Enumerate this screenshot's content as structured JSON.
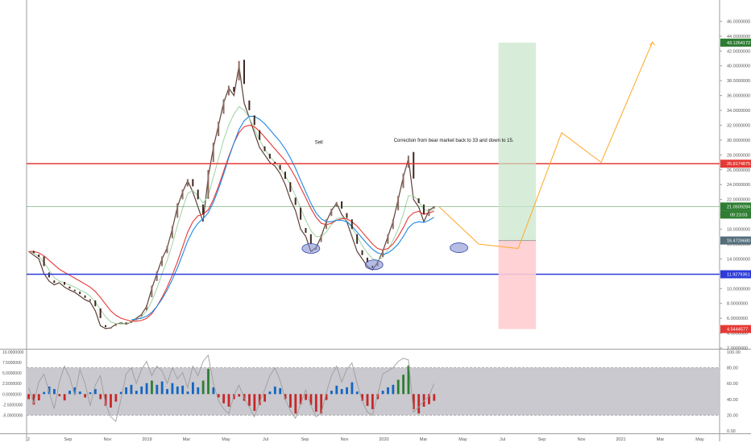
{
  "chart_data": {
    "type": "line",
    "main": {
      "ylim": [
        2,
        48
      ],
      "y_ticks": [
        "46.0000000",
        "44.0000000",
        "42.0000000",
        "40.0000000",
        "38.0000000",
        "36.0000000",
        "34.0000000",
        "32.0000000",
        "30.0000000",
        "28.0000000",
        "26.0000000",
        "24.0000000",
        "22.0000000",
        "20.0000000",
        "18.0000000",
        "16.0000000",
        "14.0000000",
        "12.0000000",
        "10.0000000",
        "8.0000000",
        "6.0000000",
        "4.0000000",
        "2.0000000"
      ],
      "series": [
        {
          "values": [
            15,
            14.5,
            14,
            12,
            11,
            10.5,
            10.8,
            10.2,
            9.8,
            9.5,
            9,
            8.5,
            8.2,
            7,
            5,
            4.6,
            4.7,
            5.2,
            5.4,
            5.2,
            5.5,
            6,
            6.5,
            7.6,
            10,
            12,
            14,
            15.5,
            18,
            21,
            23,
            24.5,
            23,
            21,
            19,
            25,
            29,
            32,
            35,
            37,
            36,
            40,
            35,
            33,
            31,
            29,
            28,
            27,
            26.5,
            25.5,
            24,
            22,
            20.5,
            18,
            17,
            15,
            15.5,
            17,
            19,
            20.5,
            21.5,
            20,
            19,
            17,
            15,
            14,
            13,
            12.5,
            13.5,
            15,
            17,
            19,
            22,
            25,
            27.5,
            22,
            21,
            19,
            20.5,
            21
          ]
        },
        {
          "values": [
            15,
            14.8,
            14.3,
            13.5,
            12.5,
            11.5,
            11,
            10.8,
            10.5,
            10.2,
            9.8,
            9.5,
            9,
            8.2,
            7.2,
            6.2,
            5.5,
            5.3,
            5.2,
            5.3,
            5.5,
            5.8,
            6.2,
            7,
            8.3,
            10,
            12,
            13.8,
            16,
            18.5,
            20.8,
            22.8,
            23.2,
            22.5,
            21.5,
            22.5,
            25,
            27.5,
            30,
            32,
            33.5,
            34.5,
            34,
            33,
            31.5,
            30,
            28.8,
            27.8,
            27,
            26.2,
            25.2,
            24,
            22.5,
            20.8,
            19.2,
            17.8,
            17,
            17,
            17.6,
            18.6,
            19.4,
            19.6,
            19.2,
            18.2,
            17,
            15.8,
            14.8,
            14,
            13.8,
            14.2,
            15.2,
            16.5,
            18,
            20,
            22.5,
            22.5,
            21.8,
            20.6,
            20.5,
            20.6
          ]
        },
        {
          "values": [
            15,
            15,
            14.8,
            14.4,
            13.8,
            13.2,
            12.6,
            12.2,
            11.8,
            11.4,
            11,
            10.6,
            10.2,
            9.6,
            8.8,
            7.9,
            7,
            6.4,
            6,
            5.8,
            5.6,
            5.6,
            5.7,
            6,
            6.6,
            7.6,
            8.8,
            10.2,
            11.8,
            13.6,
            15.6,
            17.6,
            19,
            19.8,
            20,
            20.6,
            22,
            23.8,
            25.8,
            27.8,
            29.6,
            31,
            31.8,
            32,
            31.8,
            31.2,
            30.4,
            29.6,
            28.8,
            28,
            27.2,
            26.2,
            25,
            23.6,
            22.2,
            20.8,
            19.6,
            18.8,
            18.6,
            18.8,
            19.2,
            19.4,
            19.4,
            19,
            18.4,
            17.6,
            16.8,
            16,
            15.4,
            15.2,
            15.4,
            16,
            17,
            18.2,
            19.6,
            20.2,
            20.4,
            20,
            20.2,
            20.4
          ]
        },
        {
          "values": [
            null,
            null,
            null,
            null,
            null,
            null,
            null,
            null,
            null,
            null,
            null,
            null,
            null,
            null,
            null,
            null,
            null,
            null,
            null,
            null,
            5.8,
            5.9,
            6,
            6.3,
            6.8,
            7.6,
            8.6,
            9.8,
            11.2,
            12.8,
            14.6,
            16.4,
            17.8,
            18.8,
            19.4,
            20.2,
            21.6,
            23.4,
            25.4,
            27.6,
            29.6,
            31.4,
            32.6,
            33.2,
            33.2,
            32.8,
            32.2,
            31.4,
            30.6,
            29.8,
            28.8,
            27.6,
            26.2,
            24.6,
            23,
            21.5,
            20.2,
            19.4,
            19,
            19,
            19.2,
            19.2,
            19,
            18.4,
            17.6,
            16.8,
            16,
            15.3,
            14.8,
            14.6,
            14.8,
            15.3,
            16,
            17,
            18.2,
            18.8,
            19,
            18.9,
            19.2,
            19.6
          ]
        }
      ],
      "projection_path": [
        [
          20.8,
          21
        ],
        [
          22.8,
          16
        ],
        [
          24.8,
          15.4
        ],
        [
          27,
          31
        ],
        [
          29,
          27
        ],
        [
          31.6,
          43.2
        ]
      ],
      "projection_end_label": "43.1264172",
      "hlines": [
        {
          "value": 26.8174875,
          "label": "26.8174875",
          "color": "#e53935"
        },
        {
          "value": 11.9279361,
          "label": "11.9279361",
          "color": "#2e3bd9"
        },
        {
          "value": 21.0509284,
          "label": "21.0509284",
          "color": "#2e7d32"
        }
      ],
      "countdown_label": "09:23:03",
      "position_box": {
        "entry": 16.472668,
        "target": 43.1264172,
        "stop": 4.5444577,
        "entry_label": "16.4726680",
        "target_label": "43.1264172",
        "stop_label": "4.5444577"
      },
      "ellipses": [
        [
          14.3,
          15.4
        ],
        [
          17.5,
          13.2
        ],
        [
          21.8,
          15.5
        ]
      ],
      "annotations": [
        {
          "text": "Sell",
          "x": 14.5,
          "y": 29.5
        },
        {
          "text": "Correction from bear market back to 33 and down to 15.",
          "x": 18.5,
          "y": 29.8
        }
      ]
    },
    "oscillator": {
      "left_ticks": [
        "10.0000000",
        "7.5000000",
        "5.0000000",
        "2.5000000",
        "0.0000000",
        "-2.5000000",
        "-5.0000000"
      ],
      "right_ticks": [
        "100.00",
        "80.00",
        "60.00",
        "40.00",
        "20.00",
        "0.00"
      ],
      "band": [
        20,
        80
      ],
      "histogram": [
        -1.2,
        -2.5,
        -1.5,
        0.5,
        1.8,
        1.2,
        -0.5,
        -1.5,
        0.8,
        1.6,
        0.6,
        -0.8,
        0.4,
        1.2,
        -1.2,
        -2.8,
        -3.2,
        -1.8,
        0.5,
        1.6,
        2.2,
        0.8,
        1.8,
        2.6,
        3.2,
        2.2,
        3.0,
        1.2,
        2.6,
        1.8,
        2.0,
        0.6,
        2.8,
        1.6,
        3.2,
        6.0,
        1.6,
        -0.8,
        -2.2,
        -3.0,
        -1.2,
        -0.6,
        -1.6,
        -2.8,
        -4.0,
        -2.6,
        -1.8,
        0.6,
        1.8,
        1.4,
        -1.2,
        -3.2,
        -4.6,
        -2.4,
        -1.4,
        -2.6,
        -4.2,
        -4.6,
        -1.4,
        0.8,
        2.0,
        1.2,
        1.6,
        2.8,
        0.6,
        -1.6,
        -2.8,
        -3.6,
        -1.2,
        0.8,
        1.6,
        2.2,
        3.4,
        4.6,
        6.8,
        -3.6,
        -4.6,
        -3.0,
        -2.4,
        -1.6
      ],
      "rsi": [
        55,
        35,
        62,
        72,
        50,
        28,
        62,
        82,
        68,
        45,
        78,
        60,
        32,
        58,
        70,
        34,
        18,
        12,
        40,
        72,
        80,
        60,
        78,
        88,
        70,
        82,
        76,
        60,
        80,
        66,
        74,
        55,
        82,
        70,
        88,
        96,
        60,
        38,
        28,
        22,
        45,
        58,
        42,
        30,
        18,
        36,
        52,
        70,
        80,
        64,
        40,
        26,
        16,
        34,
        52,
        32,
        18,
        22,
        48,
        70,
        82,
        62,
        78,
        86,
        60,
        38,
        24,
        20,
        46,
        72,
        76,
        80,
        88,
        92,
        90,
        24,
        30,
        38,
        44,
        60
      ]
    },
    "x_ticks": [
      {
        "label": "2",
        "x": 0
      },
      {
        "label": "Sep",
        "x": 2
      },
      {
        "label": "Nov",
        "x": 4
      },
      {
        "label": "2019",
        "x": 6
      },
      {
        "label": "Mar",
        "x": 8
      },
      {
        "label": "May",
        "x": 10
      },
      {
        "label": "Jul",
        "x": 12
      },
      {
        "label": "Sep",
        "x": 14
      },
      {
        "label": "Nov",
        "x": 16
      },
      {
        "label": "2020",
        "x": 18
      },
      {
        "label": "Mar",
        "x": 20
      },
      {
        "label": "May",
        "x": 22
      },
      {
        "label": "Jul",
        "x": 24
      },
      {
        "label": "Sep",
        "x": 26
      },
      {
        "label": "Nov",
        "x": 28
      },
      {
        "label": "2021",
        "x": 30
      },
      {
        "label": "Mar",
        "x": 32
      },
      {
        "label": "May",
        "x": 34
      }
    ],
    "colors": {
      "price": "#5d4037",
      "ma_fast": "#a5d6a7",
      "ma_mid": "#e53935",
      "ma_slow": "#1e88e5",
      "projection": "#ffa726",
      "ellipse": "#7986cb",
      "hist_up": "#1565c0",
      "hist_dn": "#c62828",
      "rsi": "#9e9e9e"
    }
  }
}
